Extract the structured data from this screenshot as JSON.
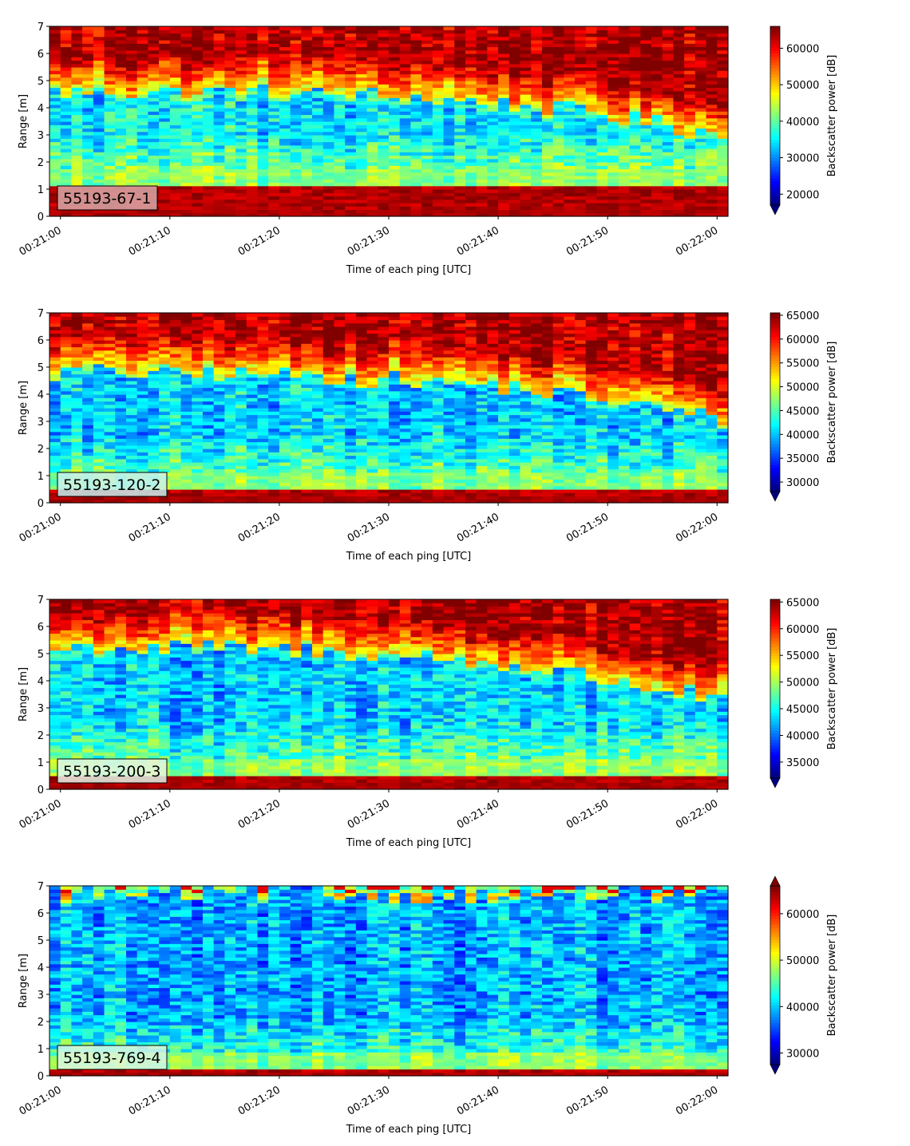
{
  "chart_data": [
    {
      "type": "heatmap",
      "label": "55193-67-1",
      "label_box_color": "#d8a8a8",
      "xlabel": "Time of each ping [UTC]",
      "ylabel": "Range [m]",
      "xticks": [
        "00:21:00",
        "00:21:10",
        "00:21:20",
        "00:21:30",
        "00:21:40",
        "00:21:50",
        "00:22:00"
      ],
      "xlim_seconds": [
        -1,
        61
      ],
      "ylim": [
        0,
        7
      ],
      "yticks": [
        0,
        1,
        2,
        3,
        4,
        5,
        6,
        7
      ],
      "colorbar": {
        "label": "Backscatter power [dB]",
        "min": 17000,
        "max": 66000,
        "ticks": [
          20000,
          30000,
          40000,
          50000,
          60000
        ],
        "extend": "min"
      },
      "profile": {
        "bottom_band_top": 1.1,
        "floor_start": 0.2,
        "surface_layer_start": 4.6,
        "surface_layer_end_start": 4.6,
        "surface_layer_end_end": 3.0,
        "mid_level": 0.25
      },
      "cmap": "jet"
    },
    {
      "type": "heatmap",
      "label": "55193-120-2",
      "label_box_color": "#c8f0ee",
      "xlabel": "Time of each ping [UTC]",
      "ylabel": "Range [m]",
      "xticks": [
        "00:21:00",
        "00:21:10",
        "00:21:20",
        "00:21:30",
        "00:21:40",
        "00:21:50",
        "00:22:00"
      ],
      "xlim_seconds": [
        -1,
        61
      ],
      "ylim": [
        0,
        7
      ],
      "yticks": [
        0,
        1,
        2,
        3,
        4,
        5,
        6,
        7
      ],
      "colorbar": {
        "label": "Backscatter power [dB]",
        "min": 28000,
        "max": 65500,
        "ticks": [
          30000,
          35000,
          40000,
          45000,
          50000,
          55000,
          60000,
          65000
        ],
        "extend": "min"
      },
      "profile": {
        "bottom_band_top": 0.55,
        "floor_start": 0.25,
        "surface_layer_start": 4.8,
        "surface_layer_end_start": 4.8,
        "surface_layer_end_end": 3.0,
        "mid_level": 0.22
      },
      "cmap": "jet"
    },
    {
      "type": "heatmap",
      "label": "55193-200-3",
      "label_box_color": "#dff5e8",
      "xlabel": "Time of each ping [UTC]",
      "ylabel": "Range [m]",
      "xticks": [
        "00:21:00",
        "00:21:10",
        "00:21:20",
        "00:21:30",
        "00:21:40",
        "00:21:50",
        "00:22:00"
      ],
      "xlim_seconds": [
        -1,
        61
      ],
      "ylim": [
        0,
        7
      ],
      "yticks": [
        0,
        1,
        2,
        3,
        4,
        5,
        6,
        7
      ],
      "colorbar": {
        "label": "Backscatter power [dB]",
        "min": 32000,
        "max": 65500,
        "ticks": [
          35000,
          40000,
          45000,
          50000,
          55000,
          60000,
          65000
        ],
        "extend": "min"
      },
      "profile": {
        "bottom_band_top": 0.55,
        "floor_start": 0.3,
        "surface_layer_start": 5.2,
        "surface_layer_end_start": 5.2,
        "surface_layer_end_end": 3.2,
        "mid_level": 0.22
      },
      "cmap": "jet"
    },
    {
      "type": "heatmap",
      "label": "55193-769-4",
      "label_box_color": "#d8f5e0",
      "xlabel": "Time of each ping [UTC]",
      "ylabel": "Range [m]",
      "xticks": [
        "00:21:00",
        "00:21:10",
        "00:21:20",
        "00:21:30",
        "00:21:40",
        "00:21:50",
        "00:22:00"
      ],
      "xlim_seconds": [
        -1,
        61
      ],
      "ylim": [
        0,
        7
      ],
      "yticks": [
        0,
        1,
        2,
        3,
        4,
        5,
        6,
        7
      ],
      "colorbar": {
        "label": "Backscatter power [dB]",
        "min": 27500,
        "max": 66000,
        "ticks": [
          30000,
          40000,
          50000,
          60000
        ],
        "extend": "both"
      },
      "profile": {
        "bottom_band_top": 0.3,
        "floor_start": 0.18,
        "surface_layer_start": 6.7,
        "surface_layer_end_start": 6.7,
        "surface_layer_end_end": 6.7,
        "mid_level": 0.18
      },
      "cmap": "jet"
    }
  ]
}
